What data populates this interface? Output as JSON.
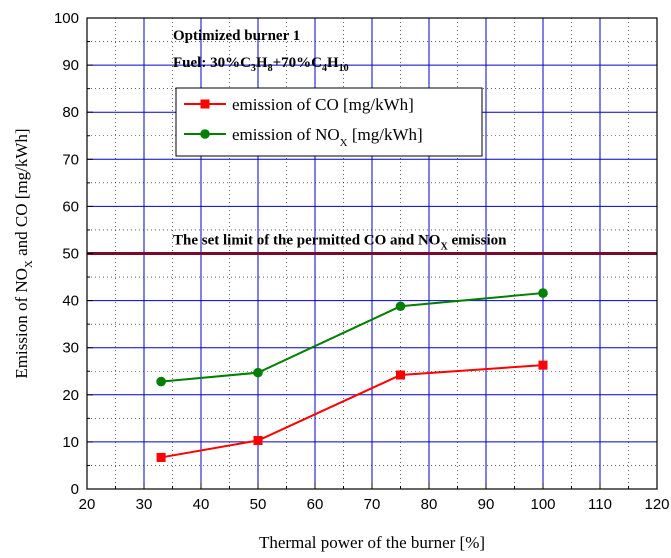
{
  "chart_data": {
    "type": "line",
    "title_line1": "Optimized burner 1",
    "fuel": {
      "prefix": "Fuel: 30%C",
      "s1": "3",
      "m1": "H",
      "s2": "8",
      "m2": "+70%C",
      "s3": "4",
      "m3": "H",
      "s4": "10"
    },
    "xlabel": "Thermal power of the burner [%]",
    "ylabel": {
      "a": "Emission of  NO",
      "sub": "X",
      "b": " and CO [mg/kWh]"
    },
    "xlim": [
      20,
      120
    ],
    "ylim": [
      0,
      100
    ],
    "xticks": [
      20,
      30,
      40,
      50,
      60,
      70,
      80,
      90,
      100,
      110,
      120
    ],
    "yticks": [
      0,
      10,
      20,
      30,
      40,
      50,
      60,
      70,
      80,
      90,
      100
    ],
    "grid": true,
    "legend_position": "top-center",
    "series": [
      {
        "name_main": "emission of CO [mg/kWh]",
        "name_sub": "",
        "name_tail": "",
        "color": "#ff0000",
        "marker": "square",
        "x": [
          33,
          50,
          75,
          100
        ],
        "y": [
          6.7,
          10.3,
          24.2,
          26.3
        ]
      },
      {
        "name_main": "emission of NO",
        "name_sub": "X",
        "name_tail": " [mg/kWh]",
        "color": "#007f00",
        "marker": "circle",
        "x": [
          33,
          50,
          75,
          100
        ],
        "y": [
          22.8,
          24.7,
          38.8,
          41.6
        ]
      }
    ],
    "limit_line": {
      "y": 50,
      "color": "#7b0a2a",
      "label_a": "The set limit of the permitted CO and NO",
      "label_sub": "X",
      "label_b": " emission"
    },
    "colors": {
      "major_grid": "#0000cc",
      "minor_grid": "#000000"
    }
  }
}
